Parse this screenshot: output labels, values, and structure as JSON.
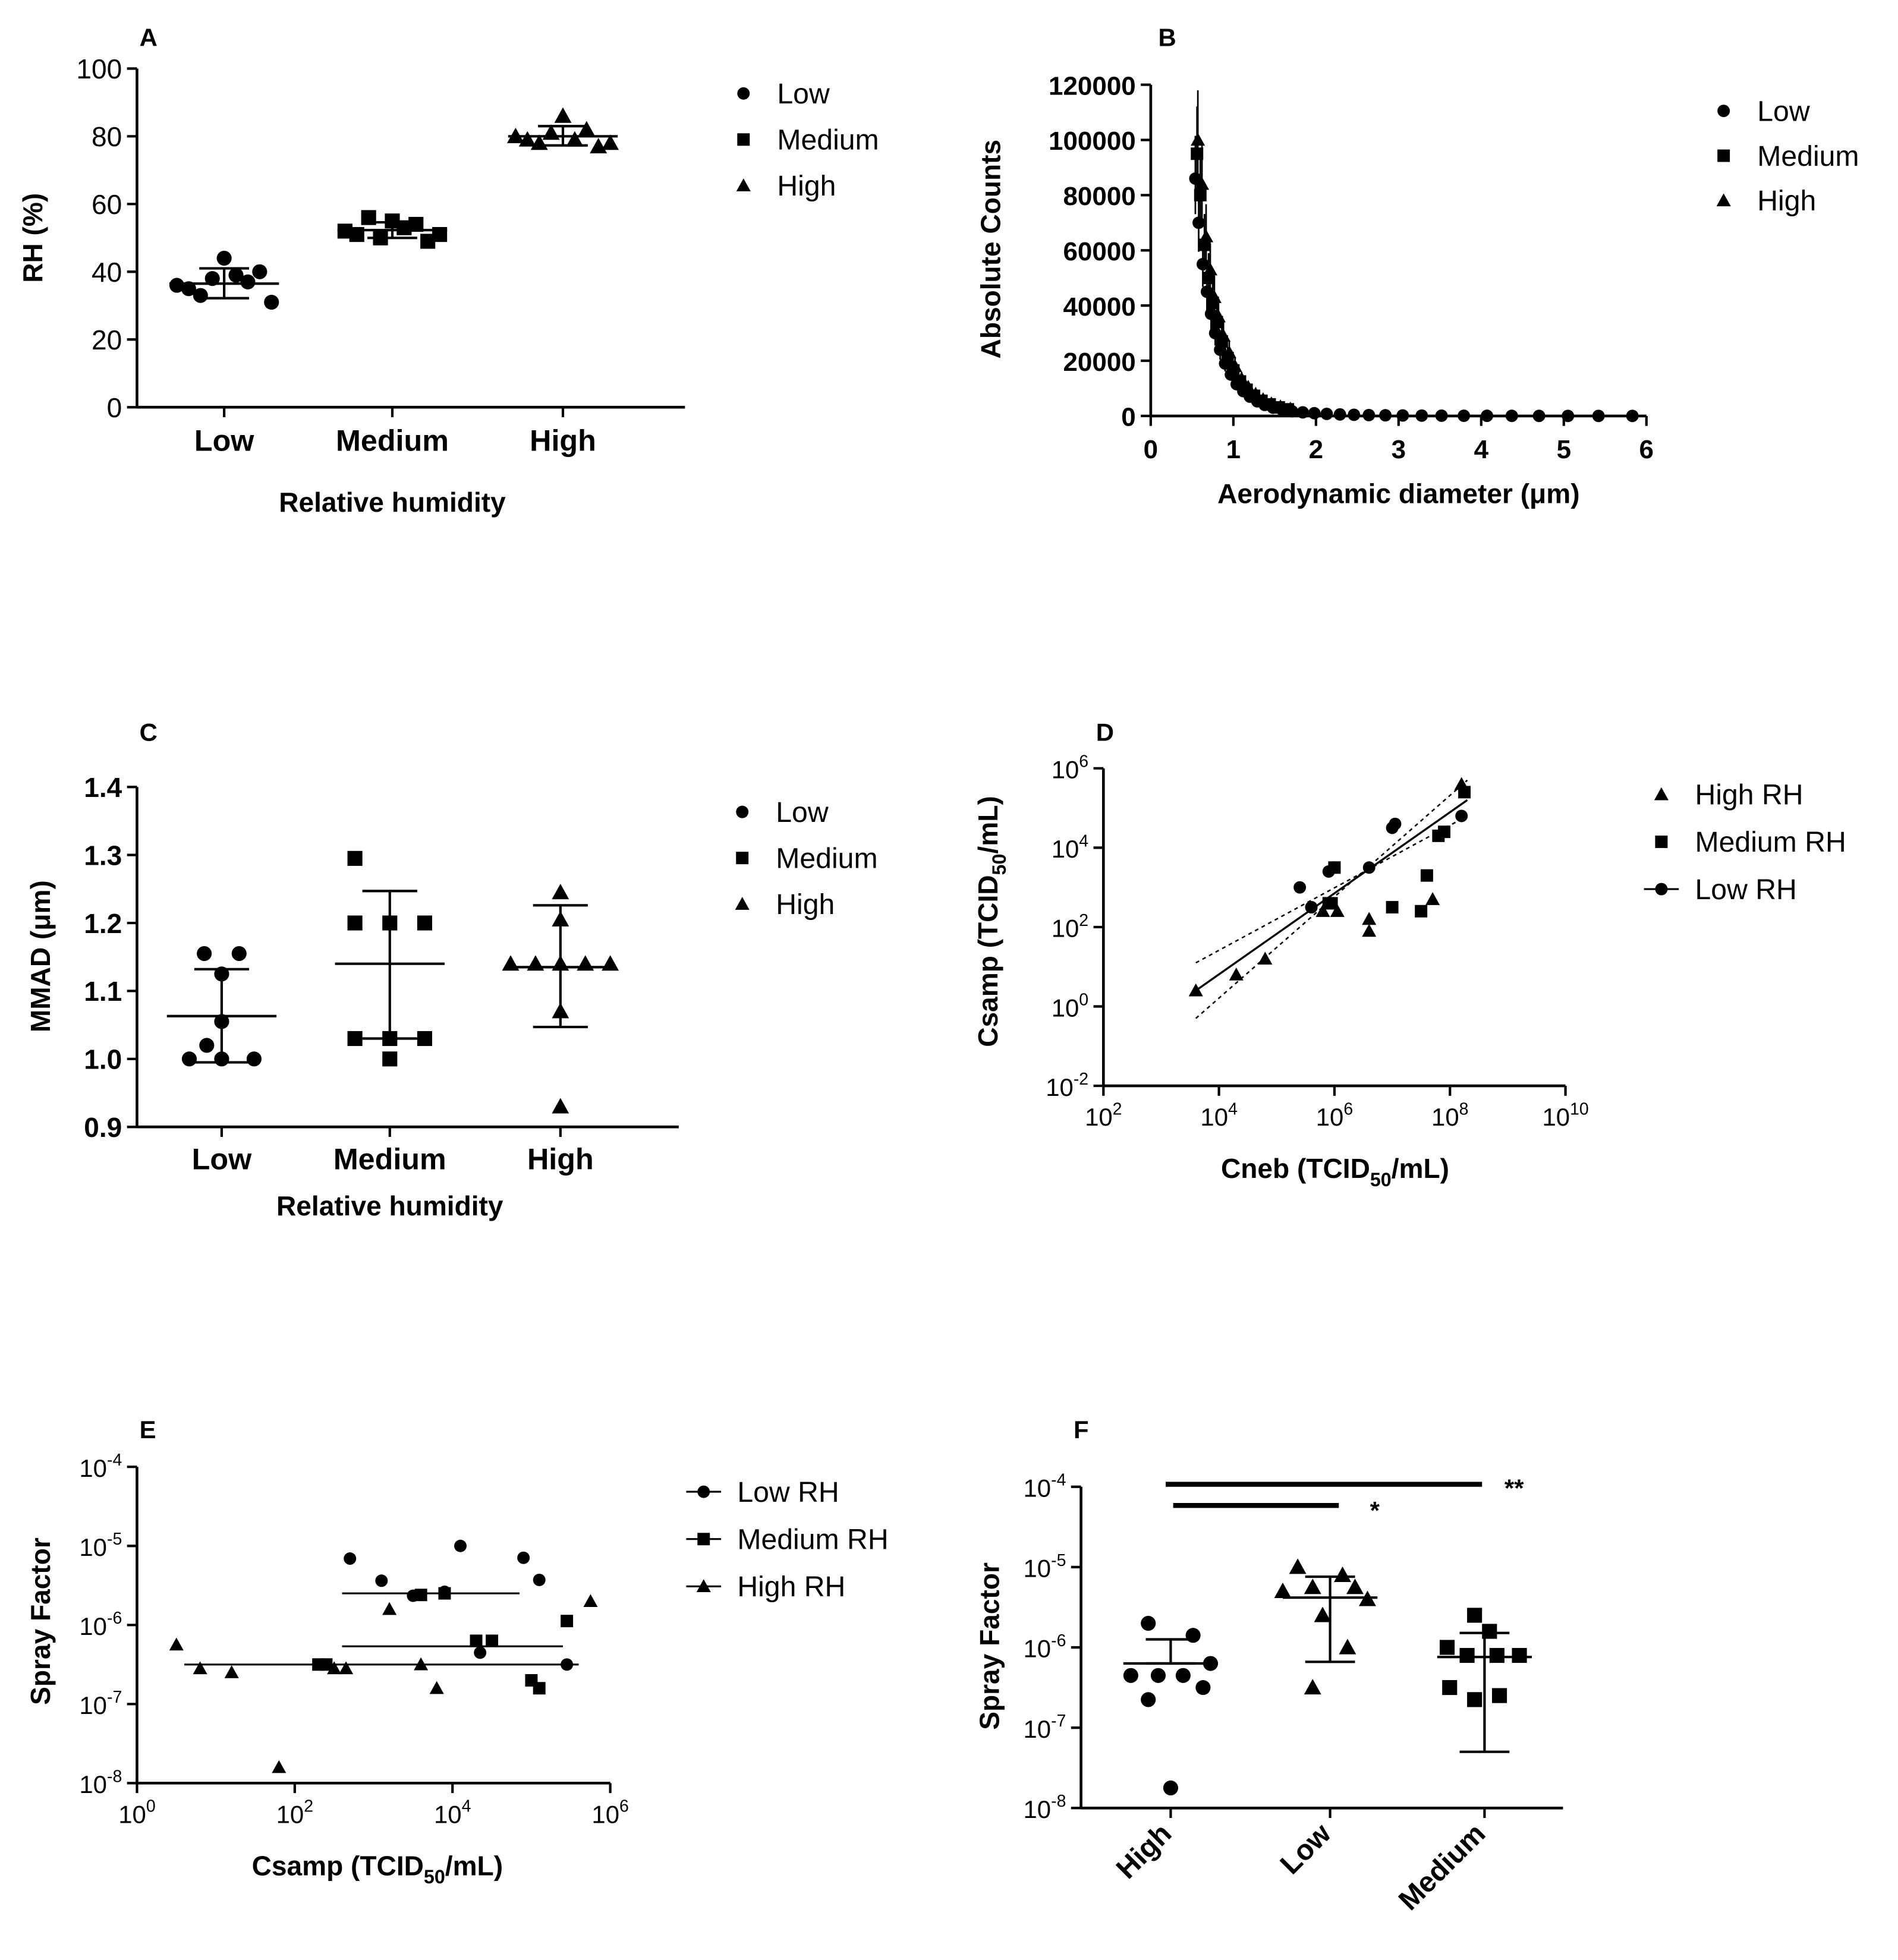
{
  "chart_data": [
    {
      "panel": "A",
      "type": "scatter",
      "xlabel": "Relative humidity",
      "ylabel": "RH (%)",
      "categories": [
        "Low",
        "Medium",
        "High"
      ],
      "ylim": [
        0,
        100
      ],
      "yticks": [
        "0",
        "20",
        "40",
        "60",
        "80",
        "100"
      ],
      "series": [
        {
          "name": "Low",
          "marker": "circle",
          "category": "Low",
          "values": [
            36,
            35,
            33,
            38,
            44,
            39,
            37,
            40,
            31
          ]
        },
        {
          "name": "Medium",
          "marker": "square",
          "category": "Medium",
          "values": [
            52,
            51,
            56,
            50,
            55,
            53,
            54,
            49,
            51
          ]
        },
        {
          "name": "High",
          "marker": "triangle",
          "category": "High",
          "values": [
            80,
            79,
            78,
            81,
            86,
            79,
            82,
            77,
            78
          ]
        }
      ],
      "summary": [
        {
          "category": "Low",
          "mean": 36.5,
          "low": 32.2,
          "high": 41
        },
        {
          "category": "Medium",
          "mean": 52.3,
          "low": 50,
          "high": 54.6
        },
        {
          "category": "High",
          "mean": 80,
          "low": 77.3,
          "high": 83
        }
      ]
    },
    {
      "panel": "B",
      "type": "scatter",
      "xlabel": "Aerodynamic diameter (μm)",
      "ylabel": "Absolute Counts",
      "xlim": [
        0,
        6
      ],
      "ylim": [
        0,
        120000
      ],
      "xticks": [
        "0",
        "1",
        "2",
        "3",
        "4",
        "5",
        "6"
      ],
      "yticks": [
        "0",
        "20000",
        "40000",
        "60000",
        "80000",
        "100000",
        "120000"
      ],
      "series": [
        {
          "name": "Low",
          "marker": "circle",
          "x": [
            0.54,
            0.58,
            0.63,
            0.68,
            0.73,
            0.78,
            0.84,
            0.9,
            0.97,
            1.04,
            1.12,
            1.2,
            1.29,
            1.38,
            1.48,
            1.59,
            1.71,
            1.84,
            1.98,
            2.13,
            2.29,
            2.46,
            2.64,
            2.84,
            3.05,
            3.28,
            3.52,
            3.79,
            4.07,
            4.37,
            4.7,
            5.05,
            5.42,
            5.83
          ],
          "y": [
            86000,
            70000,
            55000,
            45000,
            37000,
            30000,
            24000,
            19000,
            15000,
            11500,
            9000,
            7000,
            5300,
            4000,
            3000,
            2300,
            1700,
            1300,
            1000,
            750,
            550,
            420,
            320,
            240,
            180,
            130,
            100,
            75,
            55,
            40,
            30,
            22,
            16,
            12
          ]
        },
        {
          "name": "Medium",
          "marker": "square",
          "x": [
            0.56,
            0.6,
            0.65,
            0.7,
            0.75,
            0.8,
            0.86,
            0.93,
            1.0,
            1.08,
            1.16,
            1.25,
            1.34,
            1.44,
            1.55,
            1.66
          ],
          "y": [
            95000,
            80000,
            62000,
            50000,
            41000,
            34000,
            27000,
            21000,
            16500,
            12500,
            9500,
            7300,
            5500,
            4200,
            3100,
            2400
          ]
        },
        {
          "name": "High",
          "marker": "triangle",
          "x": [
            0.57,
            0.62,
            0.67,
            0.72,
            0.77,
            0.82,
            0.88,
            0.95,
            1.02,
            1.1,
            1.18,
            1.27,
            1.36,
            1.46,
            1.57,
            1.69
          ],
          "y": [
            100000,
            84000,
            65000,
            53000,
            43000,
            36000,
            29000,
            23000,
            18000,
            13500,
            10500,
            8000,
            6000,
            4500,
            3400,
            2600
          ]
        }
      ]
    },
    {
      "panel": "C",
      "type": "scatter",
      "xlabel": "Relative humidity",
      "ylabel": "MMAD (μm)",
      "categories": [
        "Low",
        "Medium",
        "High"
      ],
      "ylim": [
        0.9,
        1.4
      ],
      "yticks": [
        "0.9",
        "1.0",
        "1.1",
        "1.2",
        "1.3",
        "1.4"
      ],
      "series": [
        {
          "name": "Low",
          "marker": "circle",
          "category": "Low",
          "values": [
            1.155,
            1.155,
            1.125,
            1.055,
            1.0,
            1.0,
            1.0,
            1.02
          ]
        },
        {
          "name": "Medium",
          "marker": "square",
          "category": "Medium",
          "values": [
            1.295,
            1.2,
            1.2,
            1.2,
            1.03,
            1.03,
            1.03,
            1.0
          ]
        },
        {
          "name": "High",
          "marker": "triangle",
          "category": "High",
          "values": [
            1.245,
            1.205,
            1.14,
            1.14,
            1.14,
            1.14,
            1.14,
            1.07,
            0.93
          ]
        }
      ],
      "summary": [
        {
          "category": "Low",
          "mean": 1.063,
          "low": 0.995,
          "high": 1.132
        },
        {
          "category": "Medium",
          "mean": 1.14,
          "low": 1.03,
          "high": 1.247
        },
        {
          "category": "High",
          "mean": 1.135,
          "low": 1.047,
          "high": 1.226
        }
      ]
    },
    {
      "panel": "D",
      "type": "scatter",
      "xlabel_main": "Cneb (TCID",
      "xlabel_sub": "50",
      "xlabel_end": "/mL)",
      "ylabel_main": "Csamp (TCID",
      "ylabel_sub": "50",
      "ylabel_end": "/mL)",
      "xscale": "log",
      "yscale": "log",
      "xlim_exp": [
        2,
        10
      ],
      "ylim_exp": [
        -2,
        6
      ],
      "xticks": [
        {
          "base": "10",
          "exp": "2"
        },
        {
          "base": "10",
          "exp": "4"
        },
        {
          "base": "10",
          "exp": "6"
        },
        {
          "base": "10",
          "exp": "8"
        },
        {
          "base": "10",
          "exp": "10"
        }
      ],
      "yticks": [
        {
          "base": "10",
          "exp": "-2"
        },
        {
          "base": "10",
          "exp": "0"
        },
        {
          "base": "10",
          "exp": "2"
        },
        {
          "base": "10",
          "exp": "4"
        },
        {
          "base": "10",
          "exp": "6"
        }
      ],
      "series": [
        {
          "name": "High RH",
          "marker": "triangle",
          "x_log10": [
            3.6,
            4.3,
            4.8,
            5.8,
            6.05,
            6.6,
            6.6,
            7.7,
            8.2
          ],
          "y_log10": [
            0.4,
            0.8,
            1.2,
            2.4,
            2.4,
            1.9,
            2.2,
            2.7,
            5.6
          ]
        },
        {
          "name": "Medium RH",
          "marker": "square",
          "x_log10": [
            5.9,
            5.95,
            6.0,
            7.0,
            7.5,
            7.6,
            7.8,
            7.9,
            8.25
          ],
          "y_log10": [
            2.6,
            2.6,
            3.5,
            2.5,
            2.4,
            3.3,
            4.3,
            4.4,
            5.4
          ]
        },
        {
          "name": "Low RH",
          "marker": "circle",
          "x_log10": [
            5.4,
            5.6,
            5.6,
            5.9,
            6.0,
            6.6,
            7.0,
            7.05,
            8.2
          ],
          "y_log10": [
            3.0,
            2.5,
            2.5,
            3.4,
            3.5,
            3.5,
            4.5,
            4.6,
            4.8
          ]
        }
      ],
      "fit": {
        "x1_log10": 3.6,
        "y1_log10": 0.4,
        "x2_log10": 8.3,
        "y2_log10": 5.2
      },
      "band_lower": {
        "x1_log10": 3.6,
        "y1_log10": -0.3,
        "x2_log10": 8.3,
        "y2_log10": 5.7
      },
      "band_upper": {
        "x1_log10": 3.6,
        "y1_log10": 1.1,
        "x2_log10": 8.3,
        "y2_log10": 4.8
      }
    },
    {
      "panel": "E",
      "type": "scatter",
      "xlabel_main": "Csamp (TCID",
      "xlabel_sub": "50",
      "xlabel_end": "/mL)",
      "ylabel": "Spray  Factor",
      "xscale": "log",
      "yscale": "log",
      "xlim_exp": [
        0,
        6
      ],
      "ylim_exp": [
        -8,
        -4
      ],
      "xticks": [
        {
          "base": "10",
          "exp": "0"
        },
        {
          "base": "10",
          "exp": "2"
        },
        {
          "base": "10",
          "exp": "4"
        },
        {
          "base": "10",
          "exp": "6"
        }
      ],
      "yticks": [
        {
          "base": "10",
          "exp": "-8"
        },
        {
          "base": "10",
          "exp": "-7"
        },
        {
          "base": "10",
          "exp": "-6"
        },
        {
          "base": "10",
          "exp": "-5"
        },
        {
          "base": "10",
          "exp": "-4"
        }
      ],
      "series": [
        {
          "name": "Low RH",
          "marker": "circle",
          "x_log10": [
            2.7,
            3.1,
            3.5,
            3.9,
            4.1,
            4.35,
            4.9,
            5.1,
            5.45
          ],
          "y_log10": [
            -5.16,
            -5.44,
            -5.63,
            -5.58,
            -5.0,
            -6.35,
            -5.15,
            -5.43,
            -6.5
          ]
        },
        {
          "name": "Medium RH",
          "marker": "square",
          "x_log10": [
            2.3,
            2.4,
            3.6,
            3.9,
            4.3,
            4.5,
            5.0,
            5.1,
            5.45
          ],
          "y_log10": [
            -6.5,
            -6.5,
            -5.62,
            -5.6,
            -6.2,
            -6.2,
            -6.7,
            -6.8,
            -5.95
          ]
        },
        {
          "name": "High RH",
          "marker": "triangle",
          "x_log10": [
            0.5,
            0.8,
            1.2,
            1.8,
            2.5,
            2.65,
            3.2,
            3.6,
            3.8,
            5.75
          ],
          "y_log10": [
            -6.25,
            -6.55,
            -6.6,
            -7.8,
            -6.55,
            -6.55,
            -5.8,
            -6.5,
            -6.8,
            -5.7
          ]
        }
      ],
      "fits": [
        {
          "name": "Low RH",
          "x1_log10": 2.6,
          "x2_log10": 4.85,
          "y_log10": -5.6
        },
        {
          "name": "Medium RH",
          "x1_log10": 2.6,
          "x2_log10": 5.4,
          "y_log10": -6.27
        },
        {
          "name": "High RH",
          "x1_log10": 0.6,
          "x2_log10": 5.6,
          "y_log10": -6.5
        }
      ]
    },
    {
      "panel": "F",
      "type": "scatter",
      "ylabel": "Spray  Factor",
      "categories": [
        "High",
        "Low",
        "Medium"
      ],
      "yscale": "log",
      "ylim_exp": [
        -8,
        -4
      ],
      "yticks": [
        {
          "base": "10",
          "exp": "-8"
        },
        {
          "base": "10",
          "exp": "-7"
        },
        {
          "base": "10",
          "exp": "-6"
        },
        {
          "base": "10",
          "exp": "-5"
        },
        {
          "base": "10",
          "exp": "-4"
        }
      ],
      "series": [
        {
          "name": "High",
          "marker": "circle",
          "category": "High",
          "y_log10": [
            -5.7,
            -5.85,
            -6.35,
            -6.35,
            -6.35,
            -6.5,
            -6.65,
            -7.75,
            -6.2
          ]
        },
        {
          "name": "Low",
          "marker": "triangle",
          "category": "Low",
          "y_log10": [
            -5.0,
            -5.1,
            -5.25,
            -5.25,
            -5.3,
            -5.4,
            -5.6,
            -6.0,
            -6.5
          ]
        },
        {
          "name": "Medium",
          "marker": "square",
          "category": "Medium",
          "y_log10": [
            -5.6,
            -5.8,
            -6.0,
            -6.1,
            -6.1,
            -6.1,
            -6.5,
            -6.6,
            -6.65
          ]
        }
      ],
      "summary": [
        {
          "category": "High",
          "mean_log10": -6.2,
          "low_log10": -6.2,
          "high_log10": -5.9
        },
        {
          "category": "Low",
          "mean_log10": -5.38,
          "low_log10": -6.18,
          "high_log10": -5.12
        },
        {
          "category": "Medium",
          "mean_log10": -6.12,
          "low_log10": -7.3,
          "high_log10": -5.82
        }
      ],
      "significance": [
        {
          "label": "**",
          "from": "High",
          "to": "Medium"
        },
        {
          "label": "*",
          "from": "High",
          "to": "Low"
        }
      ]
    }
  ],
  "panels": {
    "A": {
      "letter": "A",
      "legend": [
        "Low",
        "Medium",
        "High"
      ]
    },
    "B": {
      "letter": "B",
      "legend": [
        "Low",
        "Medium",
        "High"
      ]
    },
    "C": {
      "letter": "C",
      "legend": [
        "Low",
        "Medium",
        "High"
      ]
    },
    "D": {
      "letter": "D",
      "legend": [
        "High RH",
        "Medium RH",
        "Low RH"
      ]
    },
    "E": {
      "letter": "E",
      "legend": [
        " Low RH",
        "Medium RH",
        "High RH"
      ]
    },
    "F": {
      "letter": "F"
    }
  }
}
